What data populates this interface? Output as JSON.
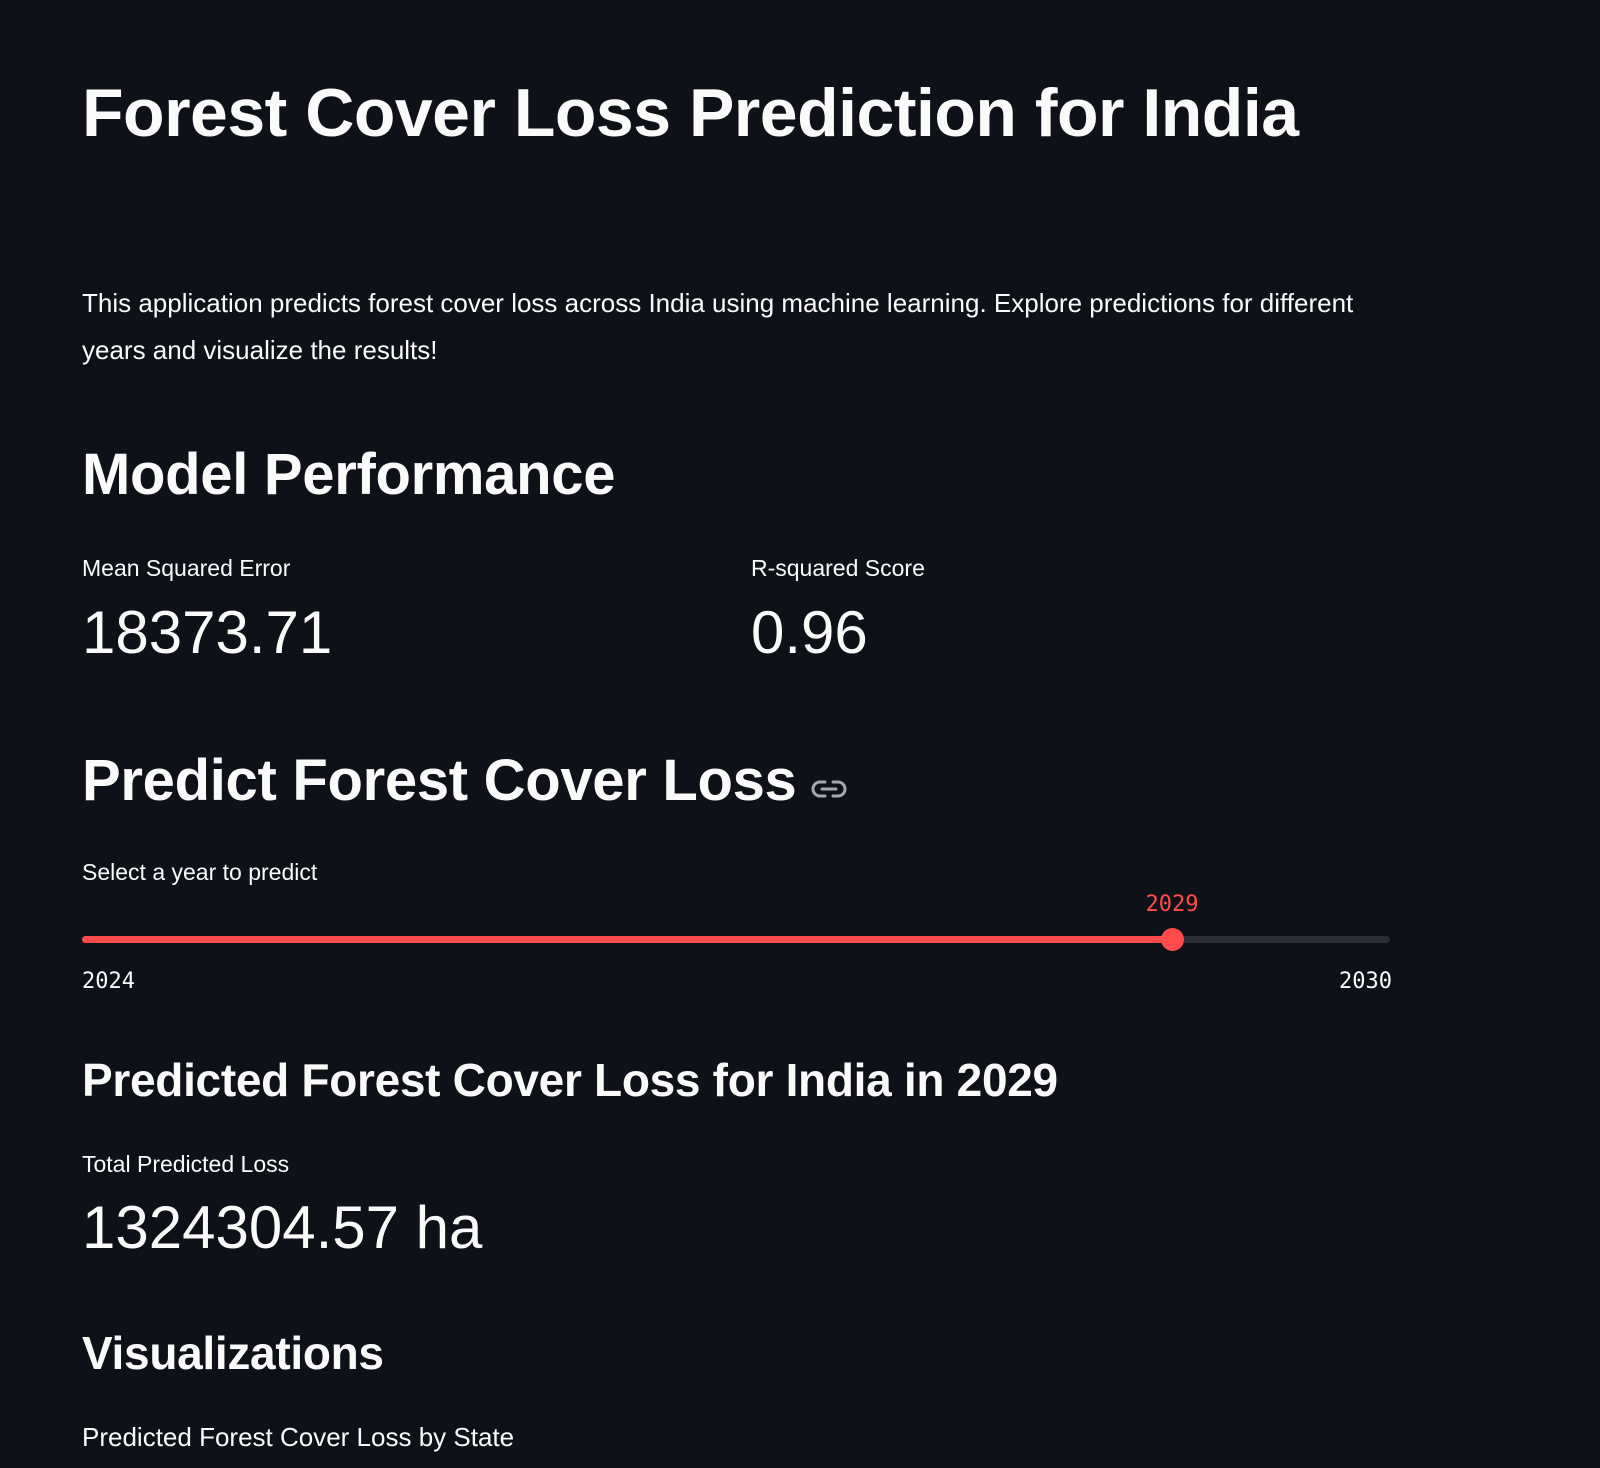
{
  "header": {
    "title": "Forest Cover Loss Prediction for India",
    "intro": "This application predicts forest cover loss across India using machine learning. Explore predictions for different years and visualize the results!"
  },
  "model_performance": {
    "heading": "Model Performance",
    "mse_label": "Mean Squared Error",
    "mse_value": "18373.71",
    "r2_label": "R-squared Score",
    "r2_value": "0.96"
  },
  "predict": {
    "heading": "Predict Forest Cover Loss",
    "link_icon": "link-icon",
    "slider": {
      "label": "Select a year to predict",
      "min": 2024,
      "max": 2030,
      "value": 2029,
      "value_text": "2029",
      "min_text": "2024",
      "max_text": "2030",
      "accent_color": "#ff4b4b",
      "track_color": "#2a2d36"
    }
  },
  "prediction": {
    "heading": "Predicted Forest Cover Loss for India in 2029",
    "total_label": "Total Predicted Loss",
    "total_value": "1324304.57 ha"
  },
  "visualizations": {
    "heading": "Visualizations",
    "caption": "Predicted Forest Cover Loss by State"
  },
  "theme": {
    "background": "#0e1117",
    "text": "#fafafa"
  }
}
